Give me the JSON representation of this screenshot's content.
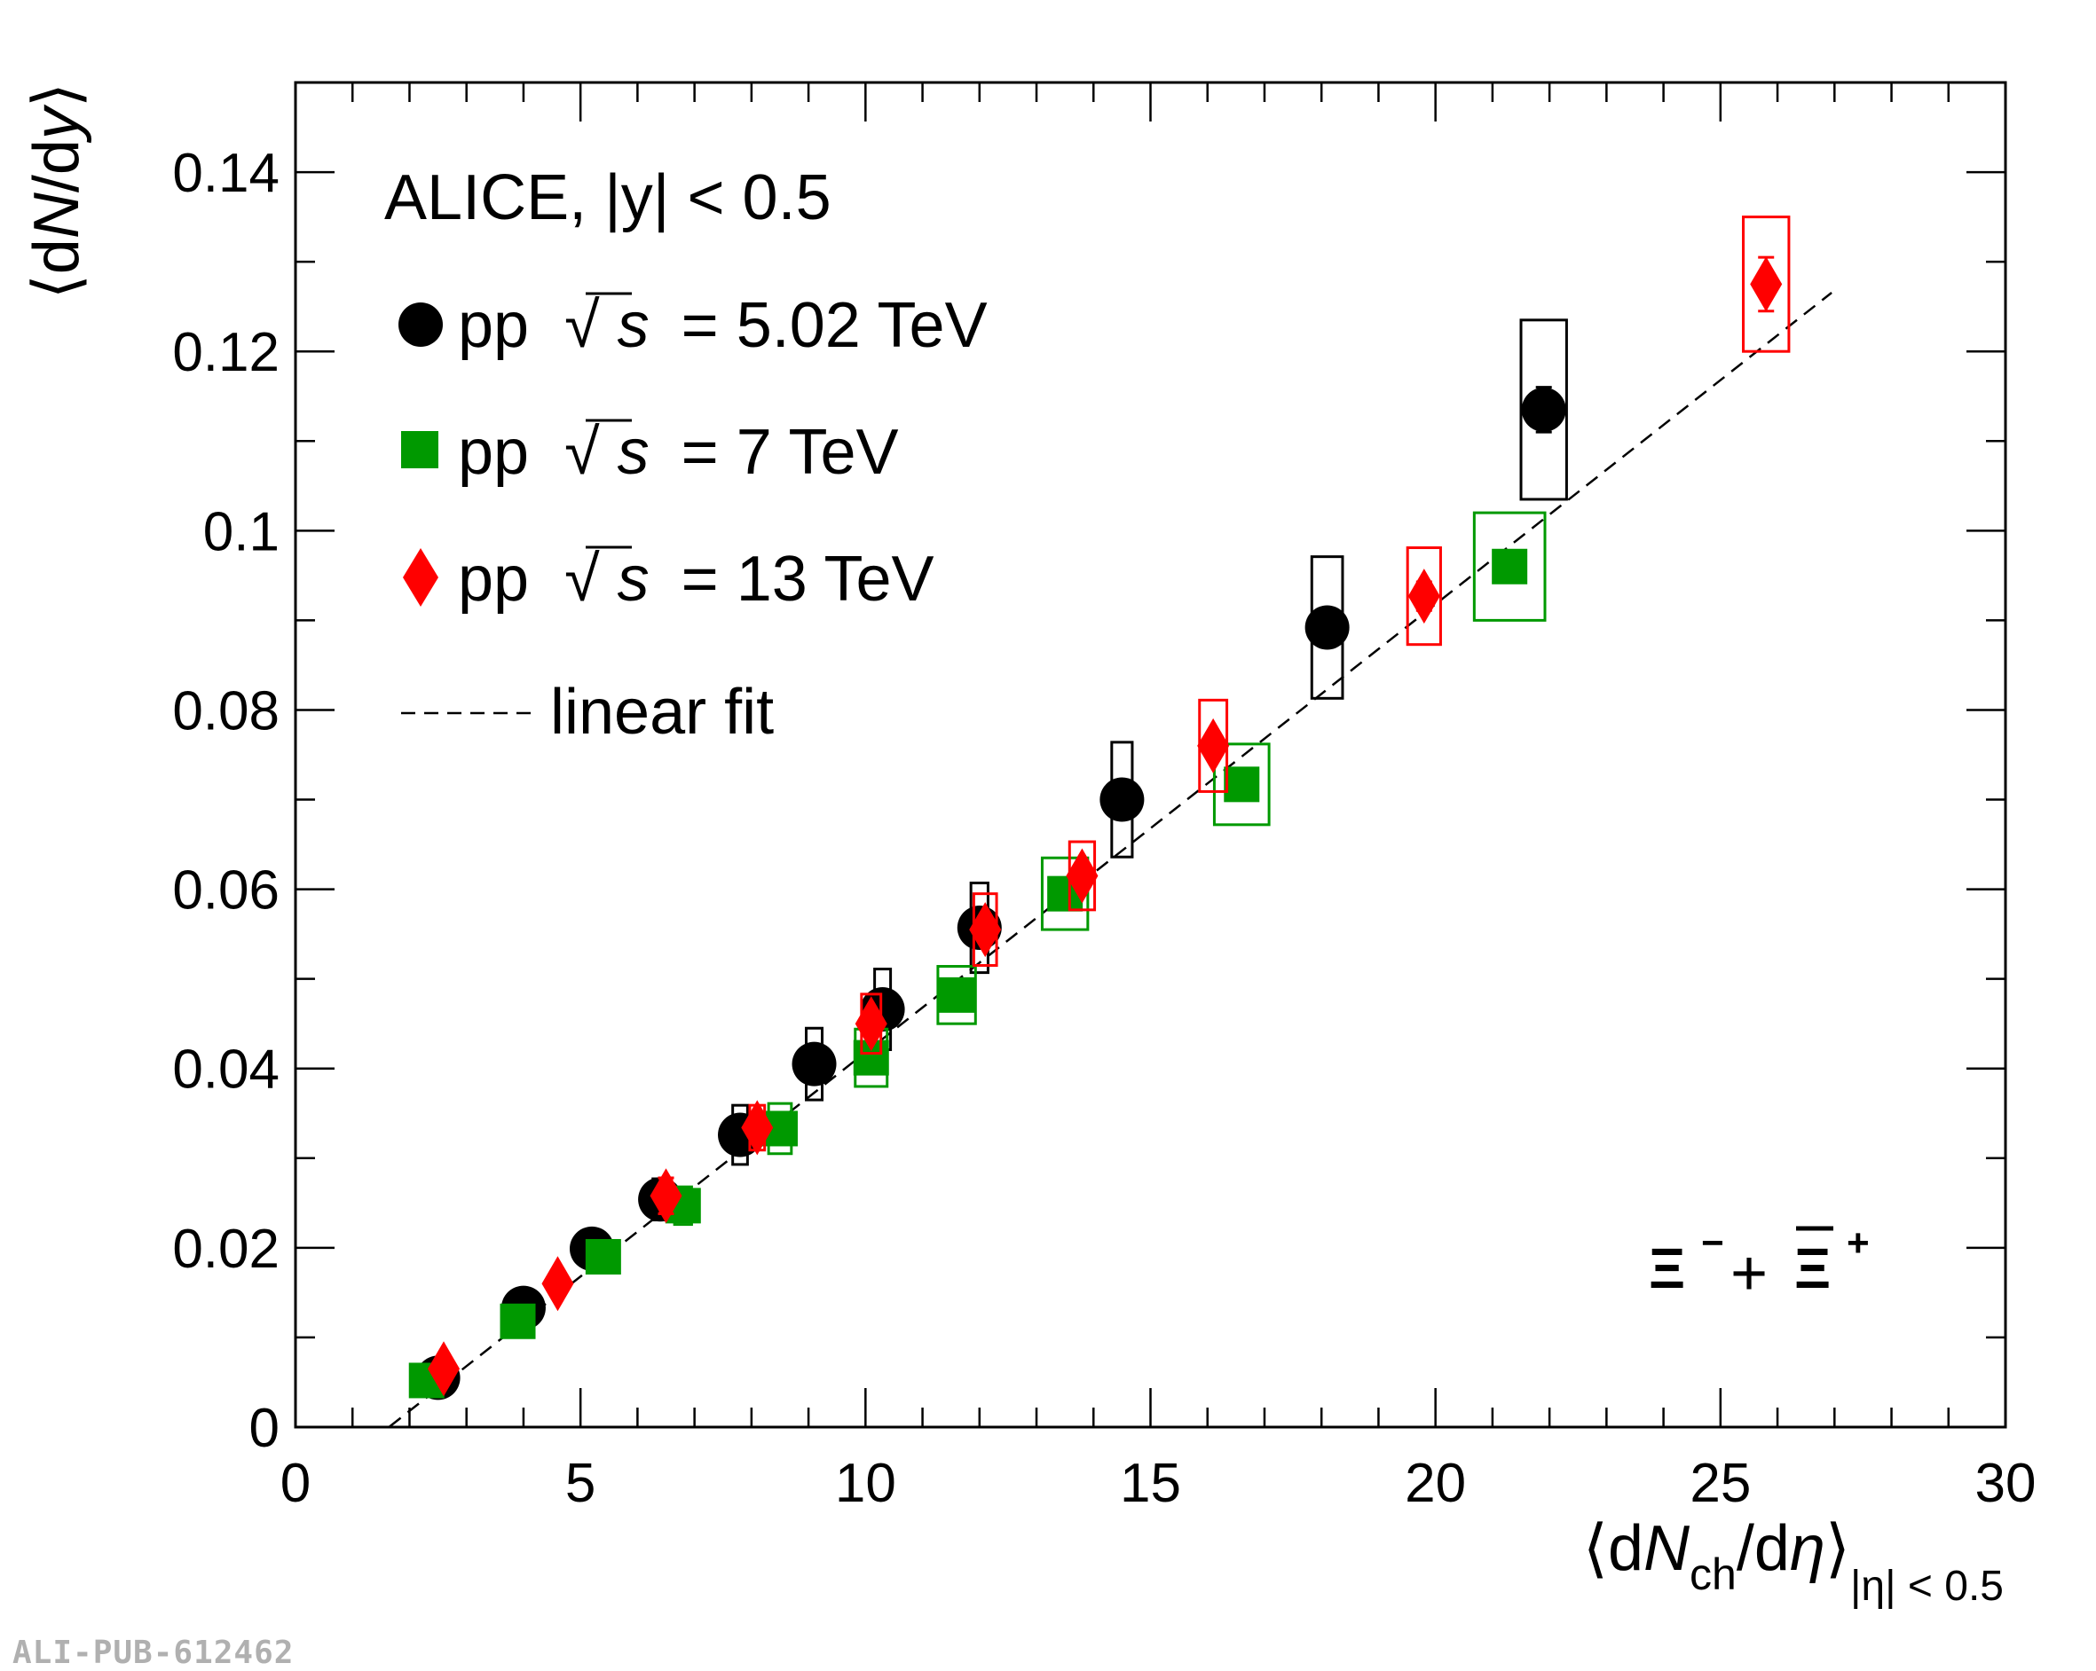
{
  "chart_data": {
    "type": "scatter",
    "title": "ALICE, |y| < 0.5",
    "particle_label": {
      "main": "Ξ",
      "minus": "−",
      "plus_sign": "+",
      "plus": "+"
    },
    "xlabel": {
      "open": "⟨d",
      "N": "N",
      "sub": "ch",
      "mid": "/d",
      "eta": "η",
      "close": "⟩",
      "range": "|η| < 0.5"
    },
    "ylabel": {
      "open": "⟨d",
      "N": "N",
      "mid": "/d",
      "y": "y",
      "close": "⟩"
    },
    "xlim": [
      0,
      30
    ],
    "ylim": [
      0,
      0.15
    ],
    "x_ticks": [
      0,
      5,
      10,
      15,
      20,
      25,
      30
    ],
    "x_tick_labels": [
      "0",
      "5",
      "10",
      "15",
      "20",
      "25",
      "30"
    ],
    "y_ticks": [
      0,
      0.02,
      0.04,
      0.06,
      0.08,
      0.1,
      0.12,
      0.14
    ],
    "y_tick_labels": [
      "0",
      "0.02",
      "0.04",
      "0.06",
      "0.08",
      "0.1",
      "0.12",
      "0.14"
    ],
    "legend_position": "top-left",
    "series": [
      {
        "name": "pp √s = 5.02 TeV",
        "legend": {
          "pre": "pp",
          "root": "√",
          "s": "s",
          "post": "= 5.02 TeV"
        },
        "marker": "circle",
        "color": "#000000",
        "points": [
          {
            "x": 2.5,
            "y": 0.0055,
            "stat": 0.0006,
            "sx": 0.12,
            "sy": 0.0007
          },
          {
            "x": 4.0,
            "y": 0.0133,
            "stat": 0.0008,
            "sx": 0.12,
            "sy": 0.0012
          },
          {
            "x": 5.2,
            "y": 0.0199,
            "stat": 0.0009,
            "sx": 0.13,
            "sy": 0.0017
          },
          {
            "x": 6.4,
            "y": 0.0254,
            "stat": 0.001,
            "sx": 0.13,
            "sy": 0.0023
          },
          {
            "x": 7.8,
            "y": 0.0326,
            "stat": 0.001,
            "sx": 0.13,
            "sy": 0.0033
          },
          {
            "x": 9.1,
            "y": 0.0405,
            "stat": 0.0011,
            "sx": 0.14,
            "sy": 0.004
          },
          {
            "x": 10.3,
            "y": 0.0466,
            "stat": 0.0012,
            "sx": 0.14,
            "sy": 0.0045
          },
          {
            "x": 12.0,
            "y": 0.0557,
            "stat": 0.0013,
            "sx": 0.15,
            "sy": 0.005
          },
          {
            "x": 14.5,
            "y": 0.07,
            "stat": 0.0015,
            "sx": 0.18,
            "sy": 0.0064
          },
          {
            "x": 18.1,
            "y": 0.0892,
            "stat": 0.0018,
            "sx": 0.27,
            "sy": 0.0079
          },
          {
            "x": 21.9,
            "y": 0.1135,
            "stat": 0.0025,
            "sx": 0.4,
            "sy": 0.01
          }
        ]
      },
      {
        "name": "pp √s = 7 TeV",
        "legend": {
          "pre": "pp",
          "root": "√",
          "s": "s",
          "post": "= 7 TeV"
        },
        "marker": "square",
        "color": "#009900",
        "points": [
          {
            "x": 2.3,
            "y": 0.0052,
            "stat": 0.0004,
            "sx": 0.12,
            "sy": 0.0007
          },
          {
            "x": 3.9,
            "y": 0.0118,
            "stat": 0.0005,
            "sx": 0.13,
            "sy": 0.0012
          },
          {
            "x": 5.4,
            "y": 0.019,
            "stat": 0.0006,
            "sx": 0.14,
            "sy": 0.0017
          },
          {
            "x": 6.8,
            "y": 0.0247,
            "stat": 0.0007,
            "sx": 0.15,
            "sy": 0.0021
          },
          {
            "x": 8.5,
            "y": 0.0333,
            "stat": 0.0008,
            "sx": 0.2,
            "sy": 0.0028
          },
          {
            "x": 10.1,
            "y": 0.0412,
            "stat": 0.0009,
            "sx": 0.28,
            "sy": 0.0032
          },
          {
            "x": 11.6,
            "y": 0.0482,
            "stat": 0.001,
            "sx": 0.33,
            "sy": 0.0032
          },
          {
            "x": 13.5,
            "y": 0.0595,
            "stat": 0.0011,
            "sx": 0.4,
            "sy": 0.004
          },
          {
            "x": 16.6,
            "y": 0.0717,
            "stat": 0.0013,
            "sx": 0.48,
            "sy": 0.0045
          },
          {
            "x": 21.3,
            "y": 0.096,
            "stat": 0.0016,
            "sx": 0.62,
            "sy": 0.006
          }
        ]
      },
      {
        "name": "pp √s = 13 TeV",
        "legend": {
          "pre": "pp",
          "root": "√",
          "s": "s",
          "post": "= 13 TeV"
        },
        "marker": "diamond",
        "color": "#ff0000",
        "points": [
          {
            "x": 2.6,
            "y": 0.0065,
            "stat": 0.0005,
            "sx": 0.1,
            "sy": 0.001
          },
          {
            "x": 4.6,
            "y": 0.016,
            "stat": 0.0006,
            "sx": 0.1,
            "sy": 0.0012
          },
          {
            "x": 6.5,
            "y": 0.0258,
            "stat": 0.002,
            "sx": 0.1,
            "sy": 0.002
          },
          {
            "x": 8.1,
            "y": 0.0334,
            "stat": 0.001,
            "sx": 0.13,
            "sy": 0.0025
          },
          {
            "x": 10.1,
            "y": 0.045,
            "stat": 0.0012,
            "sx": 0.17,
            "sy": 0.0033
          },
          {
            "x": 12.1,
            "y": 0.0555,
            "stat": 0.0012,
            "sx": 0.2,
            "sy": 0.004
          },
          {
            "x": 13.8,
            "y": 0.0615,
            "stat": 0.0013,
            "sx": 0.22,
            "sy": 0.0038
          },
          {
            "x": 16.1,
            "y": 0.076,
            "stat": 0.0014,
            "sx": 0.24,
            "sy": 0.0051
          },
          {
            "x": 19.8,
            "y": 0.0927,
            "stat": 0.0016,
            "sx": 0.29,
            "sy": 0.0054
          },
          {
            "x": 25.8,
            "y": 0.1275,
            "stat": 0.003,
            "sx": 0.4,
            "sy": 0.0075
          }
        ]
      }
    ],
    "fit": {
      "name": "linear fit",
      "x1": 1.65,
      "x2": 26.95,
      "slope": 0.005,
      "intercept": -0.0082,
      "color": "#000000"
    }
  },
  "pub_id": "ALI-PUB-612462"
}
